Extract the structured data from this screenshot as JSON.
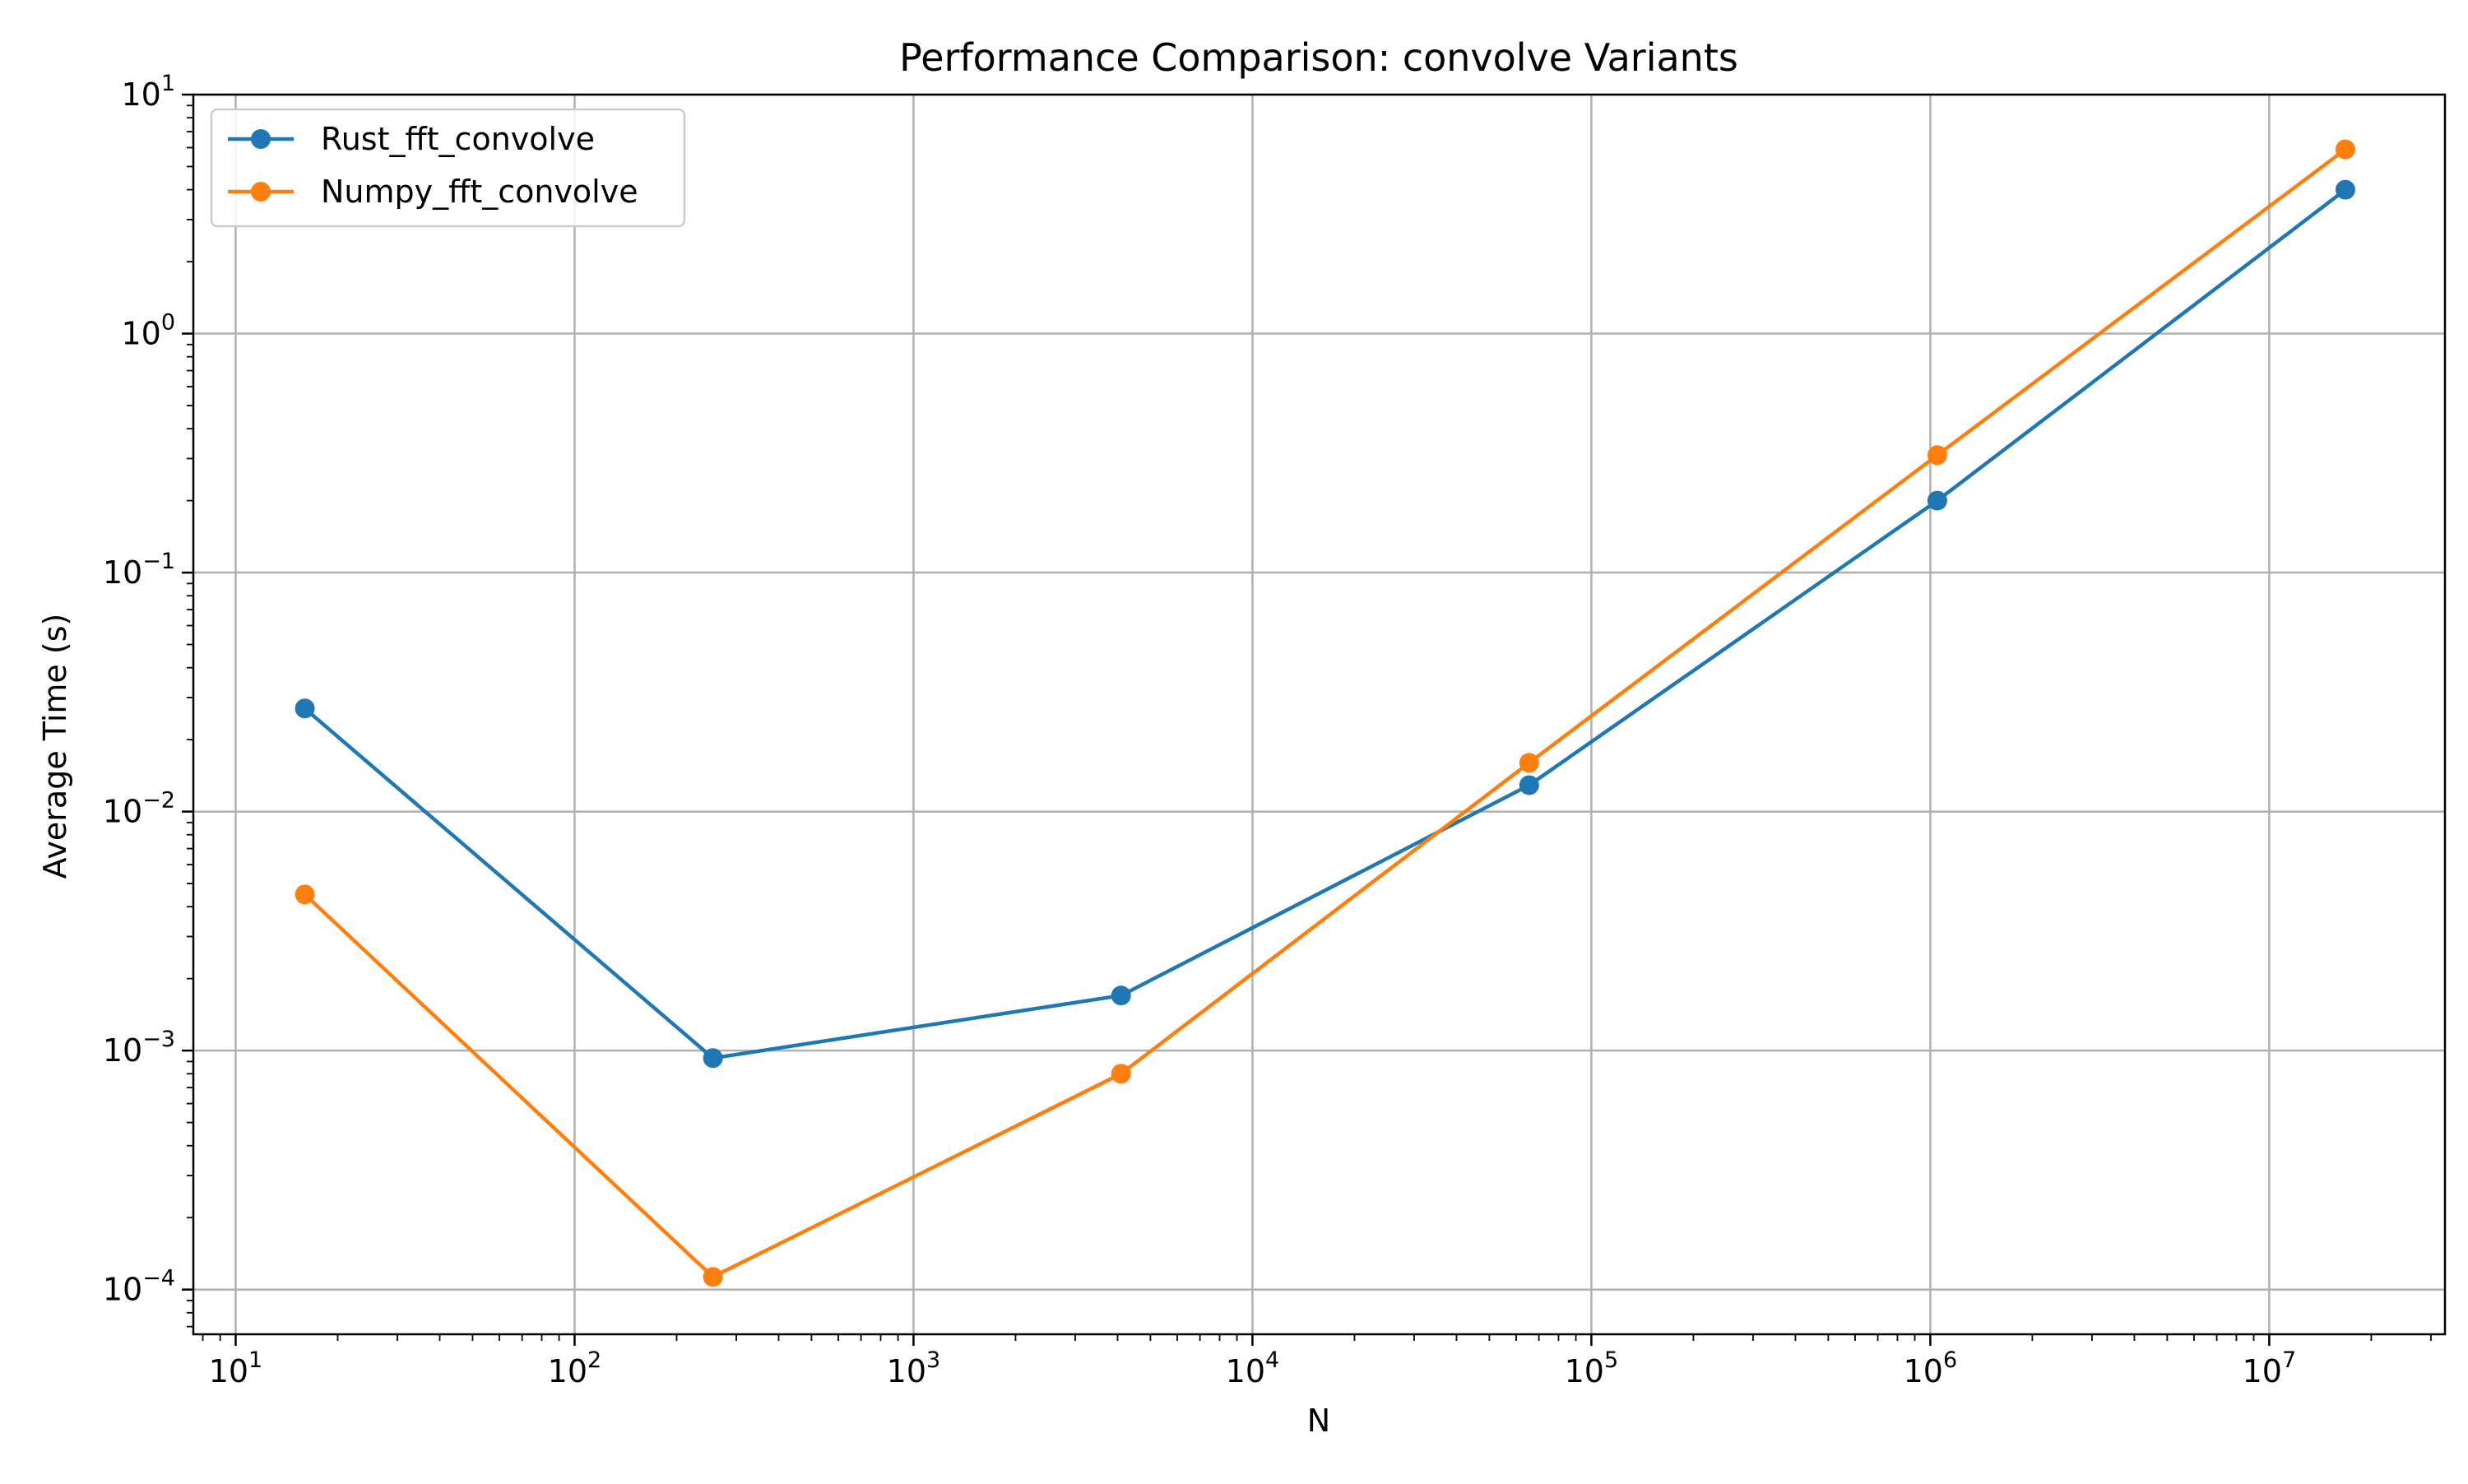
{
  "chart_data": {
    "type": "line",
    "title": "Performance Comparison: convolve Variants",
    "xlabel": "N",
    "ylabel": "Average Time (s)",
    "xscale": "log",
    "yscale": "log",
    "xlim": [
      7.5,
      33000000
    ],
    "ylim": [
      6.5e-05,
      10
    ],
    "x": [
      16,
      256,
      4096,
      65536,
      1048576,
      16777216
    ],
    "grid": true,
    "legend_position": "upper-left",
    "x_ticks": [
      {
        "value": 10,
        "base": "10",
        "exp": "1"
      },
      {
        "value": 100,
        "base": "10",
        "exp": "2"
      },
      {
        "value": 1000,
        "base": "10",
        "exp": "3"
      },
      {
        "value": 10000,
        "base": "10",
        "exp": "4"
      },
      {
        "value": 100000,
        "base": "10",
        "exp": "5"
      },
      {
        "value": 1000000,
        "base": "10",
        "exp": "6"
      },
      {
        "value": 10000000,
        "base": "10",
        "exp": "7"
      }
    ],
    "y_ticks": [
      {
        "value": 0.0001,
        "base": "10",
        "exp": "−4"
      },
      {
        "value": 0.001,
        "base": "10",
        "exp": "−3"
      },
      {
        "value": 0.01,
        "base": "10",
        "exp": "−2"
      },
      {
        "value": 0.1,
        "base": "10",
        "exp": "−1"
      },
      {
        "value": 1,
        "base": "10",
        "exp": "0"
      },
      {
        "value": 10,
        "base": "10",
        "exp": "1"
      }
    ],
    "series": [
      {
        "name": "Rust_fft_convolve",
        "color": "#1f77b4",
        "values": [
          0.027,
          0.00093,
          0.0017,
          0.0129,
          0.2,
          4.0
        ]
      },
      {
        "name": "Numpy_fft_convolve",
        "color": "#ff7f0e",
        "values": [
          0.0045,
          0.000113,
          0.0008,
          0.016,
          0.31,
          5.9
        ]
      }
    ]
  }
}
